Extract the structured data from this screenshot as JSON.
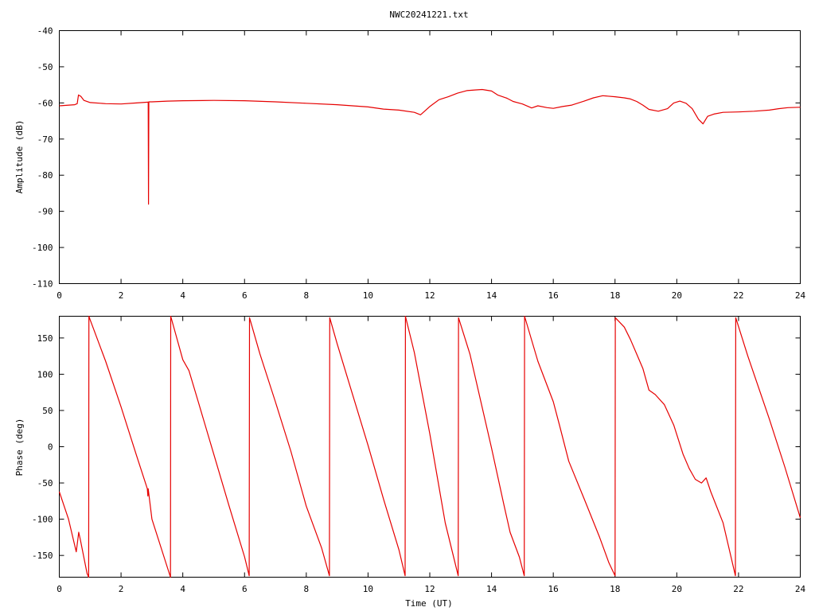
{
  "chart_data": [
    {
      "type": "line",
      "title": "NWC20241221.txt",
      "xlabel": "",
      "ylabel": "Amplitude (dB)",
      "xlim": [
        0,
        24
      ],
      "ylim": [
        -110,
        -40
      ],
      "xticks": [
        "0",
        "2",
        "4",
        "6",
        "8",
        "10",
        "12",
        "14",
        "16",
        "18",
        "20",
        "22",
        "24"
      ],
      "yticks": [
        "-40",
        "-50",
        "-60",
        "-70",
        "-80",
        "-90",
        "-100",
        "-110"
      ],
      "color": "#e60000",
      "series": [
        {
          "points": [
            [
              0,
              -60.8
            ],
            [
              0.5,
              -60.5
            ],
            [
              0.58,
              -60.2
            ],
            [
              0.62,
              -57.8
            ],
            [
              0.7,
              -58.2
            ],
            [
              0.8,
              -59.3
            ],
            [
              1.0,
              -59.9
            ],
            [
              1.5,
              -60.2
            ],
            [
              2.0,
              -60.3
            ],
            [
              2.5,
              -60.0
            ],
            [
              2.88,
              -59.8
            ],
            [
              2.89,
              -88.0
            ],
            [
              2.9,
              -59.7
            ],
            [
              3.0,
              -59.7
            ],
            [
              3.5,
              -59.5
            ],
            [
              4.0,
              -59.4
            ],
            [
              5.0,
              -59.3
            ],
            [
              6.0,
              -59.4
            ],
            [
              7.0,
              -59.7
            ],
            [
              8.0,
              -60.1
            ],
            [
              9.0,
              -60.5
            ],
            [
              10.0,
              -61.1
            ],
            [
              10.5,
              -61.7
            ],
            [
              11.0,
              -62.0
            ],
            [
              11.5,
              -62.6
            ],
            [
              11.7,
              -63.3
            ],
            [
              12.0,
              -61.0
            ],
            [
              12.3,
              -59.1
            ],
            [
              12.6,
              -58.3
            ],
            [
              12.9,
              -57.3
            ],
            [
              13.2,
              -56.6
            ],
            [
              13.5,
              -56.4
            ],
            [
              13.7,
              -56.3
            ],
            [
              14.0,
              -56.7
            ],
            [
              14.2,
              -57.8
            ],
            [
              14.5,
              -58.7
            ],
            [
              14.7,
              -59.6
            ],
            [
              15.0,
              -60.3
            ],
            [
              15.3,
              -61.4
            ],
            [
              15.5,
              -60.8
            ],
            [
              15.8,
              -61.3
            ],
            [
              16.0,
              -61.5
            ],
            [
              16.3,
              -61.0
            ],
            [
              16.6,
              -60.6
            ],
            [
              17.0,
              -59.5
            ],
            [
              17.3,
              -58.6
            ],
            [
              17.6,
              -58.0
            ],
            [
              18.0,
              -58.3
            ],
            [
              18.3,
              -58.6
            ],
            [
              18.5,
              -58.9
            ],
            [
              18.7,
              -59.6
            ],
            [
              18.9,
              -60.6
            ],
            [
              19.1,
              -61.8
            ],
            [
              19.4,
              -62.3
            ],
            [
              19.7,
              -61.6
            ],
            [
              19.9,
              -60.0
            ],
            [
              20.1,
              -59.5
            ],
            [
              20.3,
              -60.1
            ],
            [
              20.5,
              -61.6
            ],
            [
              20.7,
              -64.5
            ],
            [
              20.85,
              -65.8
            ],
            [
              21.0,
              -63.7
            ],
            [
              21.2,
              -63.1
            ],
            [
              21.5,
              -62.6
            ],
            [
              22.0,
              -62.5
            ],
            [
              22.5,
              -62.3
            ],
            [
              23.0,
              -62.0
            ],
            [
              23.3,
              -61.6
            ],
            [
              23.6,
              -61.3
            ],
            [
              24.0,
              -61.2
            ]
          ]
        }
      ]
    },
    {
      "type": "line",
      "title": "",
      "xlabel": "Time (UT)",
      "ylabel": "Phase (deg)",
      "xlim": [
        0,
        24
      ],
      "ylim": [
        -180,
        180
      ],
      "xticks": [
        "0",
        "2",
        "4",
        "6",
        "8",
        "10",
        "12",
        "14",
        "16",
        "18",
        "20",
        "22",
        "24"
      ],
      "yticks": [
        "150",
        "100",
        "50",
        "0",
        "-50",
        "-100",
        "-150"
      ],
      "color": "#e60000",
      "series": [
        {
          "points": [
            [
              0,
              -62
            ],
            [
              0.3,
              -100
            ],
            [
              0.55,
              -145
            ],
            [
              0.6,
              -128
            ],
            [
              0.63,
              -118
            ],
            [
              0.68,
              -128
            ],
            [
              0.9,
              -175
            ],
            [
              0.95,
              -180
            ],
            [
              0.96,
              180
            ],
            [
              1.0,
              175
            ],
            [
              1.5,
              118
            ],
            [
              2.0,
              55
            ],
            [
              2.5,
              -12
            ],
            [
              2.85,
              -58
            ],
            [
              2.87,
              -68
            ],
            [
              2.88,
              -58
            ],
            [
              3.0,
              -100
            ],
            [
              3.6,
              -180
            ],
            [
              3.61,
              180
            ],
            [
              4.0,
              120
            ],
            [
              4.2,
              105
            ],
            [
              4.5,
              62
            ],
            [
              5.0,
              -10
            ],
            [
              5.5,
              -82
            ],
            [
              6.0,
              -152
            ],
            [
              6.15,
              -178
            ],
            [
              6.16,
              178
            ],
            [
              6.5,
              128
            ],
            [
              7.0,
              62
            ],
            [
              7.5,
              -6
            ],
            [
              8.0,
              -82
            ],
            [
              8.5,
              -140
            ],
            [
              8.75,
              -178
            ],
            [
              8.76,
              178
            ],
            [
              9.0,
              142
            ],
            [
              9.5,
              72
            ],
            [
              10.0,
              2
            ],
            [
              10.5,
              -72
            ],
            [
              11.0,
              -142
            ],
            [
              11.2,
              -178
            ],
            [
              11.21,
              180
            ],
            [
              11.5,
              130
            ],
            [
              12.0,
              18
            ],
            [
              12.5,
              -105
            ],
            [
              12.92,
              -178
            ],
            [
              12.93,
              178
            ],
            [
              13.3,
              128
            ],
            [
              14.0,
              -2
            ],
            [
              14.4,
              -80
            ],
            [
              14.6,
              -118
            ],
            [
              14.9,
              -152
            ],
            [
              15.06,
              -178
            ],
            [
              15.07,
              180
            ],
            [
              15.5,
              118
            ],
            [
              16.0,
              62
            ],
            [
              16.2,
              30
            ],
            [
              16.5,
              -20
            ],
            [
              17.0,
              -72
            ],
            [
              17.5,
              -125
            ],
            [
              17.8,
              -160
            ],
            [
              18.0,
              -178
            ],
            [
              18.01,
              178
            ],
            [
              18.3,
              165
            ],
            [
              18.5,
              148
            ],
            [
              18.7,
              128
            ],
            [
              18.9,
              108
            ],
            [
              19.1,
              78
            ],
            [
              19.3,
              72
            ],
            [
              19.6,
              58
            ],
            [
              19.9,
              30
            ],
            [
              20.2,
              -10
            ],
            [
              20.4,
              -30
            ],
            [
              20.6,
              -45
            ],
            [
              20.8,
              -50
            ],
            [
              20.95,
              -43
            ],
            [
              21.1,
              -62
            ],
            [
              21.5,
              -105
            ],
            [
              21.9,
              -178
            ],
            [
              21.91,
              178
            ],
            [
              22.3,
              125
            ],
            [
              23.0,
              38
            ],
            [
              23.5,
              -28
            ],
            [
              24.0,
              -98
            ]
          ]
        }
      ]
    }
  ]
}
